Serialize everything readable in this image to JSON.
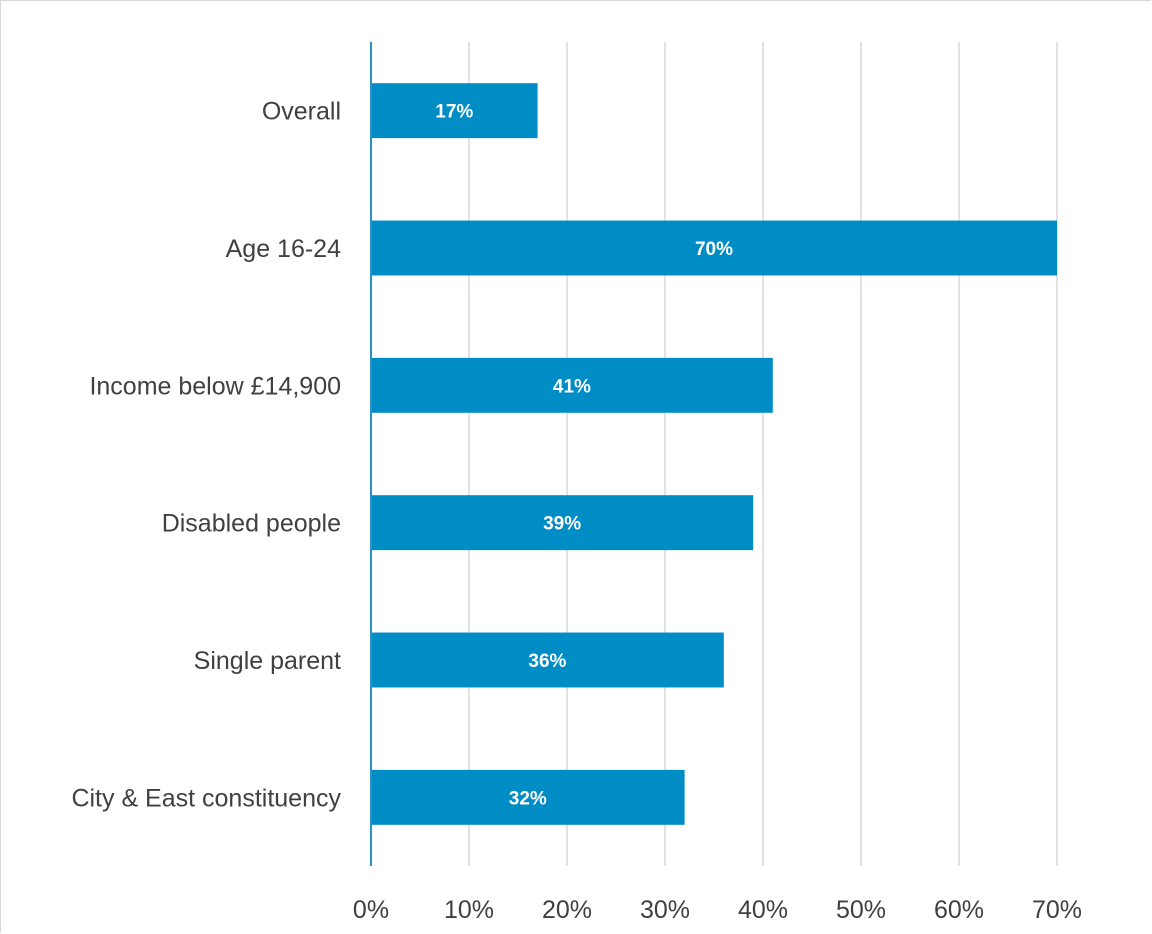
{
  "chart_data": {
    "type": "bar",
    "orientation": "horizontal",
    "title": "",
    "xlabel": "",
    "ylabel": "",
    "categories": [
      "Overall",
      "Age 16-24",
      "Income below £14,900",
      "Disabled people",
      "Single parent",
      "City & East constituency"
    ],
    "values": [
      17,
      70,
      41,
      39,
      36,
      32
    ],
    "data_labels": [
      "17%",
      "70%",
      "41%",
      "39%",
      "36%",
      "32%"
    ],
    "xlim": [
      0,
      70
    ],
    "ticks": [
      0,
      10,
      20,
      30,
      40,
      50,
      60,
      70
    ],
    "tick_labels": [
      "0%",
      "10%",
      "20%",
      "30%",
      "40%",
      "50%",
      "60%",
      "70%"
    ],
    "grid": true,
    "legend": "none",
    "colors": {
      "bar": "#008cc4",
      "axis": "#2e8ec9",
      "grid": "#d9d9d9",
      "text": "#404040",
      "data_label": "#ffffff"
    }
  }
}
